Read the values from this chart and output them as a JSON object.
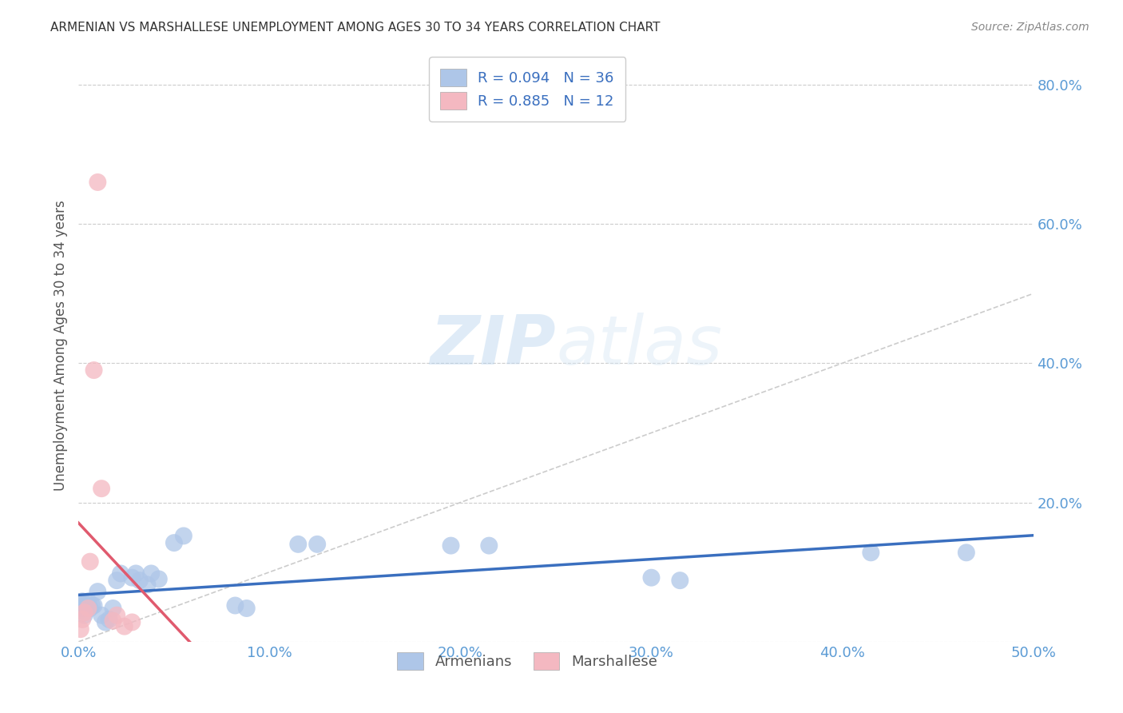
{
  "title": "ARMENIAN VS MARSHALLESE UNEMPLOYMENT AMONG AGES 30 TO 34 YEARS CORRELATION CHART",
  "source": "Source: ZipAtlas.com",
  "ylabel": "Unemployment Among Ages 30 to 34 years",
  "xlim": [
    0.0,
    0.5
  ],
  "ylim": [
    0.0,
    0.85
  ],
  "yticks": [
    0.0,
    0.2,
    0.4,
    0.6,
    0.8
  ],
  "xticks": [
    0.0,
    0.1,
    0.2,
    0.3,
    0.4,
    0.5
  ],
  "ytick_labels": [
    "",
    "20.0%",
    "40.0%",
    "60.0%",
    "80.0%"
  ],
  "xtick_labels": [
    "0.0%",
    "10.0%",
    "20.0%",
    "30.0%",
    "40.0%",
    "50.0%"
  ],
  "armenian_color": "#aec6e8",
  "marshallese_color": "#f4b8c1",
  "armenian_line_color": "#3a6fbf",
  "marshallese_line_color": "#e05a6e",
  "diagonal_color": "#cccccc",
  "watermark_zip": "ZIP",
  "watermark_atlas": "atlas",
  "background_color": "#ffffff",
  "grid_color": "#cccccc",
  "armenians_x": [
    0.001,
    0.001,
    0.002,
    0.002,
    0.003,
    0.003,
    0.004,
    0.005,
    0.006,
    0.007,
    0.008,
    0.01,
    0.012,
    0.014,
    0.016,
    0.018,
    0.02,
    0.022,
    0.028,
    0.03,
    0.032,
    0.036,
    0.038,
    0.042,
    0.05,
    0.055,
    0.115,
    0.125,
    0.195,
    0.215,
    0.3,
    0.315,
    0.415,
    0.465,
    0.082,
    0.088
  ],
  "armenians_y": [
    0.055,
    0.045,
    0.058,
    0.048,
    0.052,
    0.038,
    0.048,
    0.058,
    0.048,
    0.052,
    0.052,
    0.072,
    0.038,
    0.028,
    0.032,
    0.048,
    0.088,
    0.098,
    0.092,
    0.098,
    0.088,
    0.082,
    0.098,
    0.09,
    0.142,
    0.152,
    0.14,
    0.14,
    0.138,
    0.138,
    0.092,
    0.088,
    0.128,
    0.128,
    0.052,
    0.048
  ],
  "marshallese_x": [
    0.001,
    0.002,
    0.003,
    0.005,
    0.006,
    0.008,
    0.01,
    0.012,
    0.018,
    0.02,
    0.024,
    0.028
  ],
  "marshallese_y": [
    0.018,
    0.032,
    0.042,
    0.048,
    0.115,
    0.39,
    0.66,
    0.22,
    0.03,
    0.038,
    0.022,
    0.028
  ]
}
